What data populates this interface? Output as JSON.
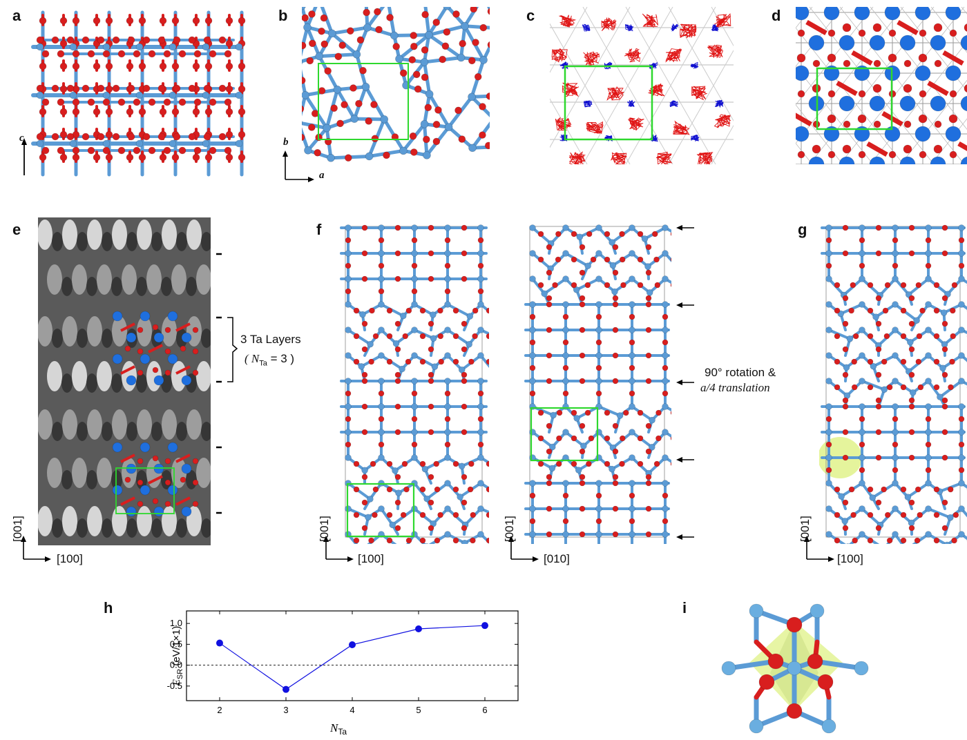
{
  "panel_labels": {
    "a": "a",
    "b": "b",
    "c": "c",
    "d": "d",
    "e": "e",
    "f": "f",
    "g": "g",
    "h": "h",
    "i": "i"
  },
  "axes": {
    "a_vertical": "c",
    "b_vertical": "b",
    "b_horizontal": "a",
    "e_vertical": "[001]",
    "e_horizontal": "[100]",
    "f1_vertical": "[001]",
    "f1_horizontal": "[100]",
    "f2_vertical": "[001]",
    "f2_horizontal": "[010]",
    "g_vertical": "[001]",
    "g_horizontal": "[100]"
  },
  "annotations": {
    "ta_layers_line1": "3 Ta Layers",
    "ta_layers_line2": "( N",
    "ta_layers_sub": "Ta",
    "ta_layers_tail": " = 3 )",
    "rotation_line1": "90° rotation &",
    "rotation_line2": "a/4 translation"
  },
  "colors": {
    "ta": "#5b9bd5",
    "o": "#d81e1e",
    "cell": "#2ed82e",
    "blue_dot": "#1f6fde",
    "series": "#1010e0",
    "highlight": "#d4ec5a"
  },
  "chart_data": {
    "type": "line",
    "x": [
      2,
      3,
      4,
      5,
      6
    ],
    "values": [
      0.53,
      -0.58,
      0.49,
      0.87,
      0.95
    ],
    "xlabel": "N",
    "xlabel_sub": "Ta",
    "ylabel": "E",
    "ylabel_sub": "SR",
    "ylabel_unit": " (eV/1×1)",
    "xticks": [
      "2",
      "3",
      "4",
      "5",
      "6"
    ],
    "yticks": [
      "1.0",
      "0.5",
      "0.0",
      "-0.5"
    ],
    "ytick_values": [
      1.0,
      0.5,
      0.0,
      -0.5
    ],
    "xlim": [
      1.5,
      6.5
    ],
    "ylim": [
      -0.85,
      1.3
    ],
    "reference_line": 0.0
  }
}
